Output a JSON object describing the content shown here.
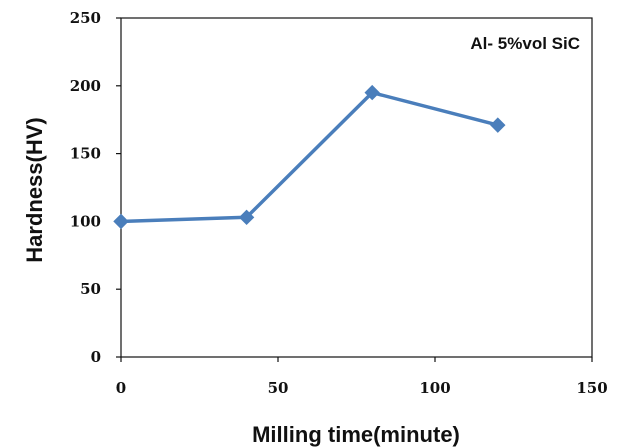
{
  "chart_data": {
    "type": "line",
    "xlabel": "Milling time(minute)",
    "ylabel": "Hardness(HV)",
    "xlim": [
      0,
      150
    ],
    "ylim": [
      0,
      250
    ],
    "x_ticks": [
      "0",
      "50",
      "100",
      "150"
    ],
    "y_ticks": [
      "0",
      "50",
      "100",
      "150",
      "200",
      "250"
    ],
    "grid": false,
    "legend_position": "top-right",
    "series": [
      {
        "name": "Al- 5%vol SiC",
        "color": "#4a7ebb",
        "x": [
          0,
          40,
          80,
          120
        ],
        "y": [
          100,
          103,
          195,
          171
        ]
      }
    ]
  }
}
